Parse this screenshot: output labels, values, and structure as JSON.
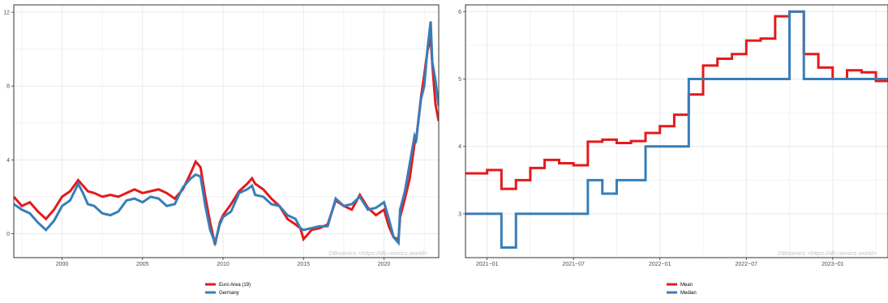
{
  "colors": {
    "euro_area": "#e41a1c",
    "germany": "#377eb8",
    "mean": "#e41a1c",
    "median": "#377eb8",
    "grid": "#ebebeb",
    "frame": "#333333"
  },
  "chart_data": [
    {
      "type": "line",
      "xlim": [
        1997.0,
        2023.4
      ],
      "ylim": [
        -1.3,
        12.4
      ],
      "x_ticks": [
        2000,
        2005,
        2010,
        2015,
        2020
      ],
      "x_tick_labels": [
        "2000",
        "2005",
        "2010",
        "2015",
        "2020"
      ],
      "y_ticks": [
        0,
        4,
        8,
        12
      ],
      "y_tick_labels": [
        "0",
        "4",
        "8",
        "12"
      ],
      "grid": true,
      "legend_position": "bottom",
      "watermark": "DBnomics <https://db.nomics.world>",
      "series": [
        {
          "name": "Euro Area (19)",
          "color": "#e41a1c",
          "x": [
            1997.0,
            1997.5,
            1998.0,
            1998.5,
            1999.0,
            1999.5,
            2000.0,
            2000.5,
            2001.0,
            2001.3,
            2001.6,
            2002.0,
            2002.5,
            2003.0,
            2003.5,
            2004.0,
            2004.5,
            2005.0,
            2005.5,
            2006.0,
            2006.5,
            2007.0,
            2007.5,
            2008.0,
            2008.3,
            2008.6,
            2008.9,
            2009.2,
            2009.5,
            2009.8,
            2010.0,
            2010.5,
            2011.0,
            2011.5,
            2011.8,
            2012.0,
            2012.5,
            2013.0,
            2013.5,
            2014.0,
            2014.5,
            2014.8,
            2015.0,
            2015.5,
            2016.0,
            2016.5,
            2017.0,
            2017.5,
            2018.0,
            2018.5,
            2019.0,
            2019.5,
            2020.0,
            2020.3,
            2020.6,
            2020.9,
            2021.0,
            2021.3,
            2021.6,
            2021.9,
            2022.0,
            2022.3,
            2022.5,
            2022.7,
            2022.9,
            2023.0,
            2023.2,
            2023.4
          ],
          "y": [
            2.0,
            1.5,
            1.7,
            1.2,
            0.8,
            1.3,
            2.0,
            2.3,
            2.9,
            2.6,
            2.3,
            2.2,
            2.0,
            2.1,
            2.0,
            2.2,
            2.4,
            2.2,
            2.3,
            2.4,
            2.2,
            1.9,
            2.4,
            3.3,
            3.9,
            3.6,
            2.0,
            0.6,
            -0.6,
            0.6,
            1.0,
            1.6,
            2.3,
            2.7,
            3.0,
            2.7,
            2.4,
            1.9,
            1.5,
            0.8,
            0.5,
            0.3,
            -0.3,
            0.2,
            0.3,
            0.5,
            1.8,
            1.5,
            1.3,
            2.1,
            1.4,
            1.0,
            1.3,
            0.4,
            -0.2,
            -0.3,
            0.9,
            1.9,
            3.0,
            4.9,
            5.1,
            7.4,
            8.6,
            9.9,
            10.6,
            9.2,
            7.0,
            6.1
          ]
        },
        {
          "name": "Germany",
          "color": "#377eb8",
          "x": [
            1997.0,
            1997.5,
            1998.0,
            1998.5,
            1999.0,
            1999.5,
            2000.0,
            2000.5,
            2001.0,
            2001.3,
            2001.6,
            2002.0,
            2002.5,
            2003.0,
            2003.5,
            2004.0,
            2004.5,
            2005.0,
            2005.5,
            2006.0,
            2006.5,
            2007.0,
            2007.5,
            2008.0,
            2008.3,
            2008.6,
            2008.9,
            2009.2,
            2009.5,
            2009.8,
            2010.0,
            2010.5,
            2011.0,
            2011.5,
            2011.8,
            2012.0,
            2012.5,
            2013.0,
            2013.5,
            2014.0,
            2014.5,
            2014.8,
            2015.0,
            2015.5,
            2016.0,
            2016.5,
            2017.0,
            2017.5,
            2018.0,
            2018.5,
            2019.0,
            2019.5,
            2020.0,
            2020.3,
            2020.6,
            2020.9,
            2021.0,
            2021.3,
            2021.6,
            2021.9,
            2022.0,
            2022.3,
            2022.5,
            2022.7,
            2022.9,
            2023.0,
            2023.2,
            2023.4
          ],
          "y": [
            1.6,
            1.3,
            1.1,
            0.6,
            0.2,
            0.7,
            1.5,
            1.8,
            2.7,
            2.2,
            1.6,
            1.5,
            1.1,
            1.0,
            1.2,
            1.8,
            1.9,
            1.7,
            2.0,
            1.9,
            1.5,
            1.6,
            2.5,
            3.0,
            3.2,
            3.1,
            1.5,
            0.2,
            -0.5,
            0.5,
            0.9,
            1.2,
            2.2,
            2.4,
            2.6,
            2.1,
            2.0,
            1.6,
            1.5,
            1.0,
            0.8,
            0.3,
            0.2,
            0.3,
            0.4,
            0.4,
            1.9,
            1.5,
            1.6,
            2.0,
            1.3,
            1.4,
            1.7,
            0.8,
            -0.2,
            -0.5,
            1.3,
            2.3,
            3.8,
            5.3,
            5.1,
            7.3,
            8.0,
            10.0,
            11.5,
            9.3,
            8.3,
            6.9
          ]
        }
      ]
    },
    {
      "type": "line",
      "xlim": [
        2020.875,
        2023.32
      ],
      "ylim": [
        2.35,
        6.1
      ],
      "x_ticks": [
        2021.0,
        2021.5,
        2022.0,
        2022.5,
        2023.0
      ],
      "x_tick_labels": [
        "2021−01",
        "2021−07",
        "2022−01",
        "2022−07",
        "2023−01"
      ],
      "y_ticks": [
        3,
        4,
        5,
        6
      ],
      "y_tick_labels": [
        "3",
        "4",
        "5",
        "6"
      ],
      "grid": true,
      "legend_position": "bottom",
      "watermark": "DBnomics <https://db.nomics.world>",
      "series": [
        {
          "name": "Mean",
          "color": "#e41a1c",
          "step": true,
          "x": [
            2020.875,
            2021.0,
            2021.083,
            2021.167,
            2021.25,
            2021.333,
            2021.417,
            2021.5,
            2021.583,
            2021.667,
            2021.75,
            2021.833,
            2021.917,
            2022.0,
            2022.083,
            2022.167,
            2022.25,
            2022.333,
            2022.417,
            2022.5,
            2022.583,
            2022.667,
            2022.75,
            2022.833,
            2022.917,
            2023.0,
            2023.083,
            2023.167,
            2023.25
          ],
          "y": [
            3.6,
            3.65,
            3.37,
            3.5,
            3.68,
            3.8,
            3.75,
            3.72,
            4.07,
            4.1,
            4.05,
            4.08,
            4.2,
            4.3,
            4.47,
            4.77,
            5.2,
            5.3,
            5.37,
            5.57,
            5.6,
            5.93,
            6.0,
            5.37,
            5.17,
            5.0,
            5.13,
            5.1,
            4.97
          ]
        },
        {
          "name": "Median",
          "color": "#377eb8",
          "step": true,
          "x": [
            2020.875,
            2021.0,
            2021.083,
            2021.167,
            2021.25,
            2021.333,
            2021.417,
            2021.5,
            2021.583,
            2021.667,
            2021.75,
            2021.833,
            2021.917,
            2022.0,
            2022.083,
            2022.167,
            2022.25,
            2022.333,
            2022.417,
            2022.5,
            2022.583,
            2022.667,
            2022.75,
            2022.833,
            2022.917,
            2023.0,
            2023.083,
            2023.167,
            2023.25
          ],
          "y": [
            3.0,
            3.0,
            2.5,
            3.0,
            3.0,
            3.0,
            3.0,
            3.0,
            3.5,
            3.3,
            3.5,
            3.5,
            4.0,
            4.0,
            4.0,
            5.0,
            5.0,
            5.0,
            5.0,
            5.0,
            5.0,
            5.0,
            6.0,
            5.0,
            5.0,
            5.0,
            5.0,
            5.0,
            5.0
          ]
        }
      ]
    }
  ]
}
